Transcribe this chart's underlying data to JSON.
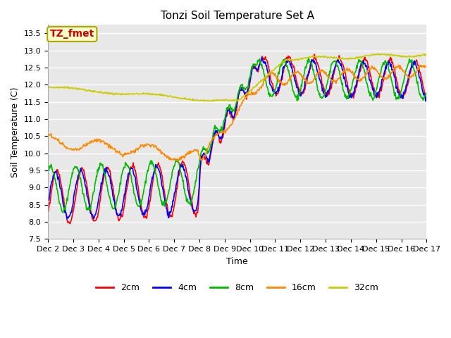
{
  "title": "Tonzi Soil Temperature Set A",
  "xlabel": "Time",
  "ylabel": "Soil Temperature (C)",
  "ylim": [
    7.5,
    13.75
  ],
  "xlim": [
    0,
    15
  ],
  "annotation_text": "TZ_fmet",
  "annotation_facecolor": "#ffffcc",
  "annotation_edgecolor": "#aaaa00",
  "annotation_textcolor": "#cc0000",
  "fig_bg_color": "#ffffff",
  "plot_bg_color": "#e8e8e8",
  "grid_color": "#ffffff",
  "series": {
    "2cm": {
      "color": "#ff0000",
      "lw": 1.2
    },
    "4cm": {
      "color": "#0000ff",
      "lw": 1.2
    },
    "8cm": {
      "color": "#00bb00",
      "lw": 1.2
    },
    "16cm": {
      "color": "#ff8800",
      "lw": 1.2
    },
    "32cm": {
      "color": "#cccc00",
      "lw": 1.2
    }
  },
  "xtick_labels": [
    "Dec 2",
    "Dec 3",
    "Dec 4",
    "Dec 5",
    "Dec 6",
    "Dec 7",
    "Dec 8",
    "Dec 9",
    "Dec 10",
    "Dec 11",
    "Dec 12",
    "Dec 13",
    "Dec 14",
    "Dec 15",
    "Dec 16",
    "Dec 17"
  ],
  "ytick_values": [
    7.5,
    8.0,
    8.5,
    9.0,
    9.5,
    10.0,
    10.5,
    11.0,
    11.5,
    12.0,
    12.5,
    13.0,
    13.5
  ],
  "legend_entries": [
    "2cm",
    "4cm",
    "8cm",
    "16cm",
    "32cm"
  ],
  "legend_colors": [
    "#ff0000",
    "#0000ff",
    "#00bb00",
    "#ff8800",
    "#cccc00"
  ],
  "title_fontsize": 11,
  "tick_fontsize": 8,
  "label_fontsize": 9,
  "legend_fontsize": 9
}
